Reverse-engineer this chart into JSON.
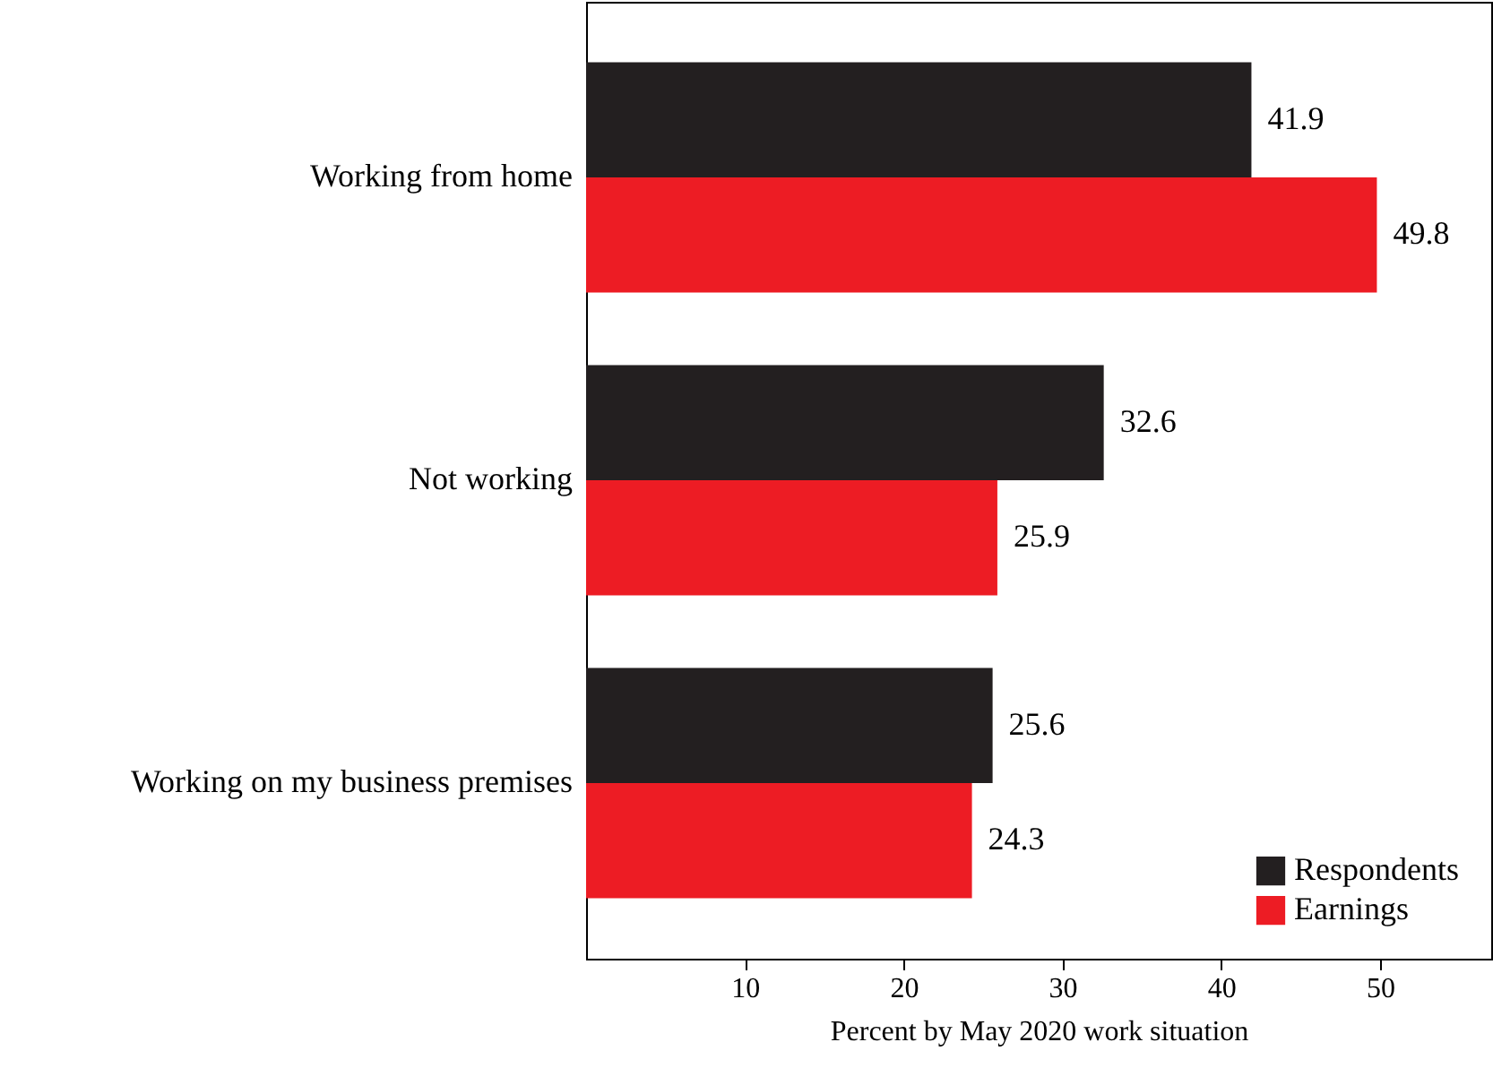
{
  "chart_data": {
    "type": "bar",
    "orientation": "horizontal",
    "xlabel": "Percent by May 2020 work situation",
    "categories": [
      "Working from home",
      "Not working",
      "Working on my business premises"
    ],
    "series": [
      {
        "name": "Respondents",
        "color": "#231f20",
        "values": [
          41.9,
          32.6,
          25.6
        ]
      },
      {
        "name": "Earnings",
        "color": "#ed1c24",
        "values": [
          49.8,
          25.9,
          24.3
        ]
      }
    ],
    "xlim": [
      0,
      57
    ],
    "xticks": [
      10,
      20,
      30,
      40,
      50
    ],
    "grid": false,
    "legend": "bottom right",
    "data_labels": true
  }
}
